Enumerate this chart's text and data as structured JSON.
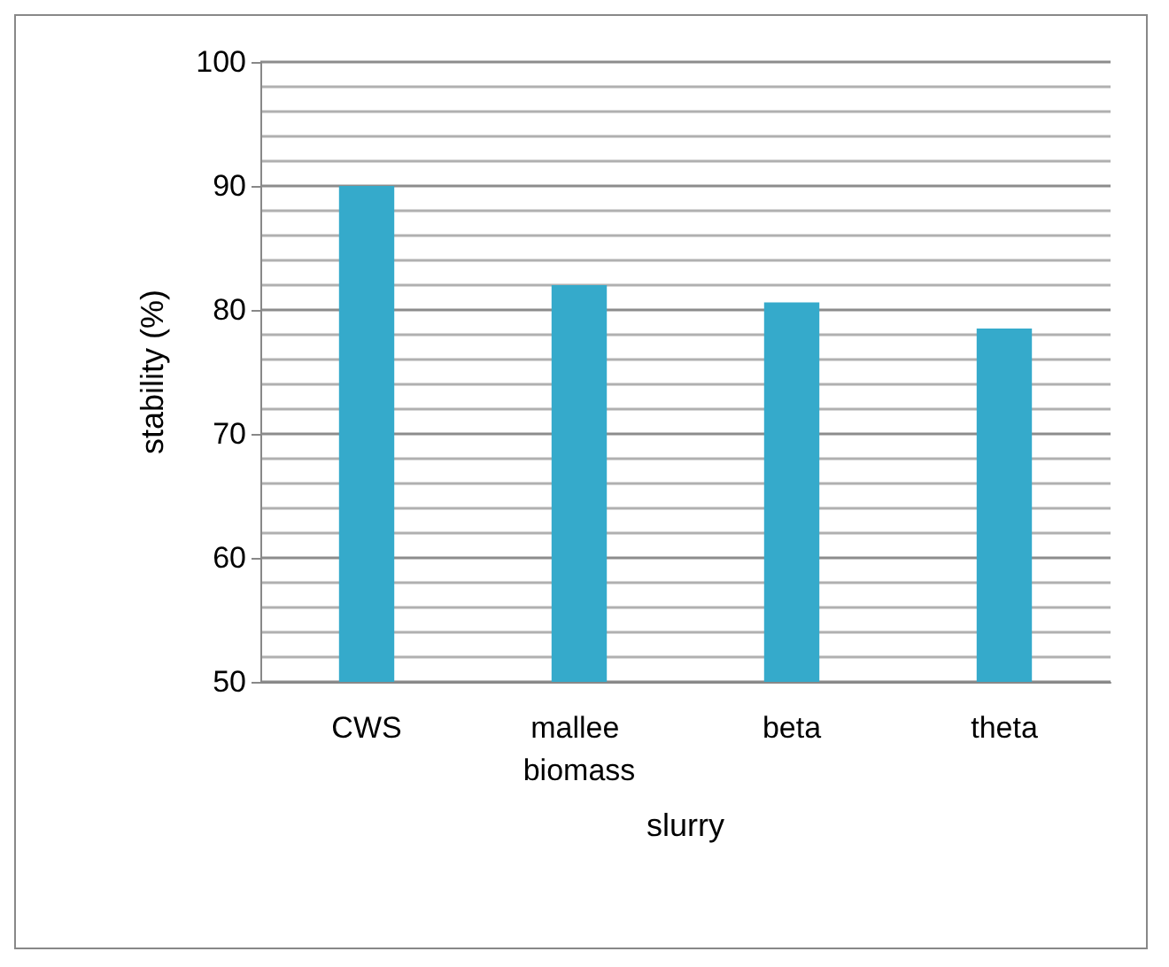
{
  "chart_data": {
    "type": "bar",
    "xlabel": "slurry",
    "ylabel": "stability (%)",
    "categories": [
      "CWS",
      "mallee biomass",
      "beta",
      "theta"
    ],
    "values": [
      90,
      82,
      80.6,
      78.5
    ],
    "color": "#35aacb",
    "ylim": [
      50,
      100
    ],
    "yticks": [
      50,
      60,
      70,
      80,
      90,
      100
    ],
    "grid": "y"
  }
}
